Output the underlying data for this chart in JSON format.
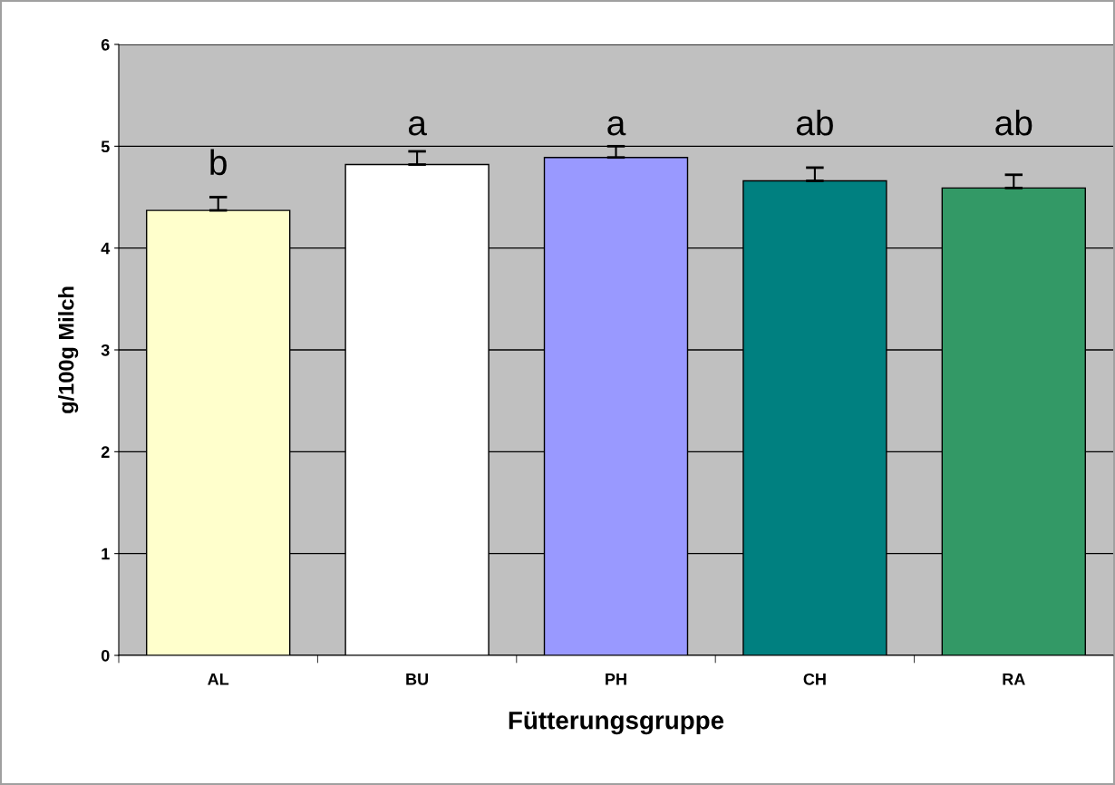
{
  "chart_data": {
    "type": "bar",
    "xlabel": "Fütterungsgruppe",
    "ylabel": "g/100g Milch",
    "categories": [
      "AL",
      "BU",
      "PH",
      "CH",
      "RA"
    ],
    "values": [
      4.37,
      4.82,
      4.89,
      4.66,
      4.59
    ],
    "colors": [
      "#ffffcc",
      "#ffffff",
      "#9999ff",
      "#008080",
      "#339966"
    ],
    "errors": [
      [
        4.37,
        4.5
      ],
      [
        4.82,
        4.95
      ],
      [
        4.89,
        5.0
      ],
      [
        4.66,
        4.79
      ],
      [
        4.59,
        4.72
      ]
    ],
    "ylim": [
      0,
      6
    ],
    "yticks": [
      0,
      1,
      2,
      3,
      4,
      5,
      6
    ],
    "grid": "y",
    "legend": false,
    "annotations": [
      "b",
      "a",
      "a",
      "ab",
      "ab"
    ]
  }
}
